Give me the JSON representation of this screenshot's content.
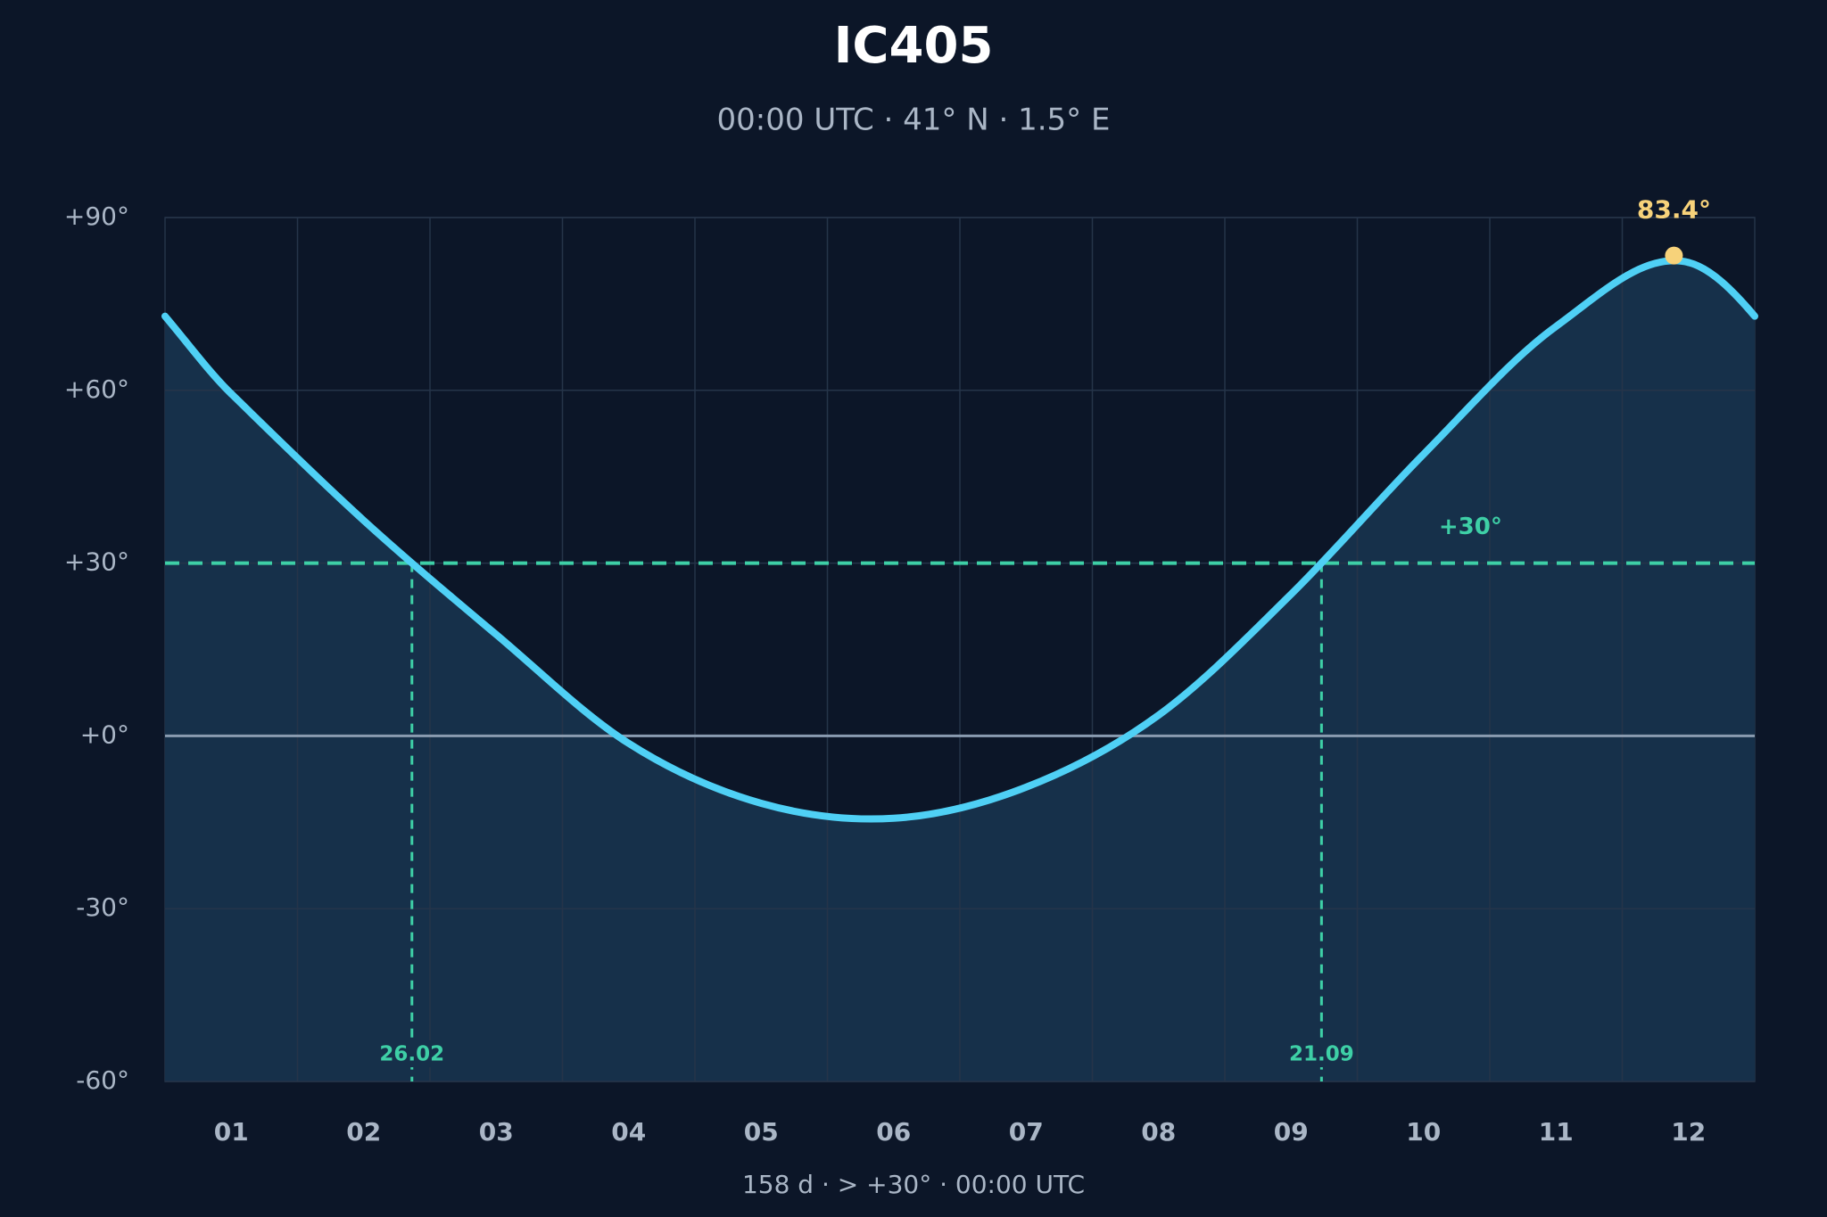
{
  "chart_data": {
    "type": "line",
    "title": "IC405",
    "subtitle": "00:00 UTC · 41° N · 1.5° E",
    "footer": "158 d  ·  > +30°  ·  00:00 UTC",
    "categories": [
      "01",
      "02",
      "03",
      "04",
      "05",
      "06",
      "07",
      "08",
      "09",
      "10",
      "11",
      "12"
    ],
    "series": [
      {
        "name": "IC405",
        "color": "#4fd0f5",
        "values": [
          59.4,
          37.4,
          17.6,
          -1.3,
          -11.7,
          -14.3,
          -8.9,
          3.6,
          24.6,
          48.9,
          71.1,
          82.2
        ]
      }
    ],
    "ylim": [
      -60,
      90
    ],
    "yticks": [
      {
        "value": -60,
        "label": "-60°"
      },
      {
        "value": -30,
        "label": "-30°"
      },
      {
        "value": 0,
        "label": "+0°"
      },
      {
        "value": 30,
        "label": "+30°"
      },
      {
        "value": 60,
        "label": "+60°"
      },
      {
        "value": 90,
        "label": "+90°"
      }
    ],
    "threshold": {
      "value": 30,
      "label": "+30°",
      "color": "#3ecfa6"
    },
    "crossings": [
      "26.02",
      "21.09"
    ],
    "peak": {
      "value": 83.4,
      "label": "83.4°",
      "color": "#f7d27a"
    },
    "grid": true
  }
}
